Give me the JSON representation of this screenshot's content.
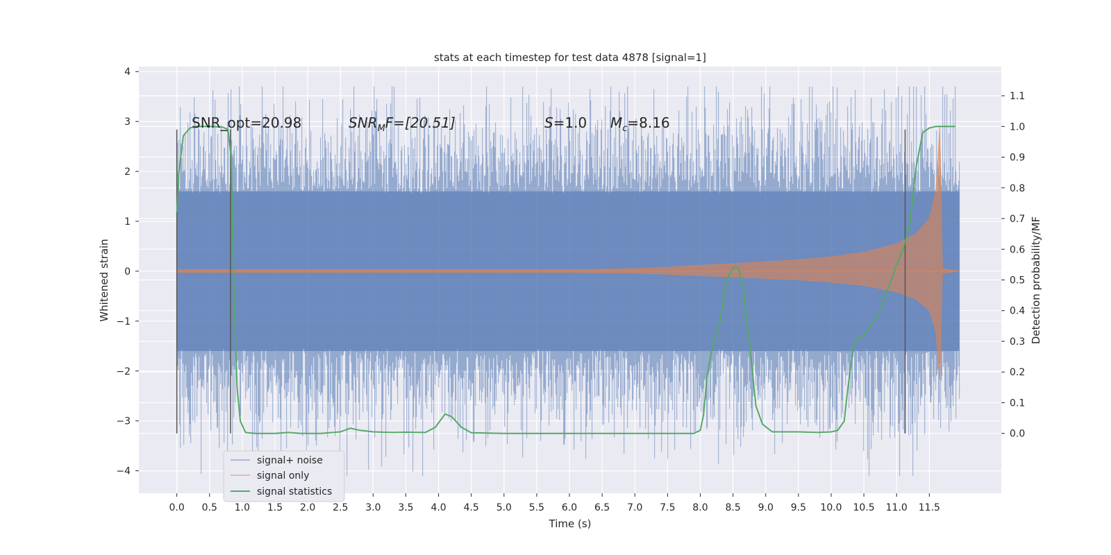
{
  "chart_data": {
    "type": "line",
    "title": "stats at each timestep for test data 4878 [signal=1]",
    "xlabel": "Time (s)",
    "ylabel": "Whitened strain",
    "y2label": "Detection probability/MF",
    "xlim": [
      -0.58,
      12.6
    ],
    "ylim": [
      -4.45,
      4.1
    ],
    "y2lim": [
      -0.195,
      1.195
    ],
    "x_ticks": [
      "0.0",
      "0.5",
      "1.0",
      "1.5",
      "2.0",
      "2.5",
      "3.0",
      "3.5",
      "4.0",
      "4.5",
      "5.0",
      "5.5",
      "6.0",
      "6.5",
      "7.0",
      "7.5",
      "8.0",
      "8.5",
      "9.0",
      "9.5",
      "10.0",
      "10.5",
      "11.0",
      "11.5"
    ],
    "y_ticks": [
      "4",
      "3",
      "2",
      "1",
      "0",
      "−1",
      "−2",
      "−3",
      "−4"
    ],
    "y2_ticks": [
      "0.0",
      "0.1",
      "0.2",
      "0.3",
      "0.4",
      "0.5",
      "0.6",
      "0.7",
      "0.8",
      "0.9",
      "1.0",
      "1.1"
    ],
    "grid": true,
    "legend_position": "lower-left",
    "annotations": {
      "snr_opt": "SNR_opt=20.98",
      "snr_mf_base": "SNR",
      "snr_mf_sub": "M",
      "snr_mf_rest": "F=[20.51]",
      "s_italic": "S",
      "s_value": "=1.0",
      "mc_base": "M",
      "mc_sub": "c",
      "mc_value": "=8.16"
    },
    "series": [
      {
        "name": "signal+ noise",
        "color": "#4c72b0",
        "x_range": [
          0.0,
          11.96
        ],
        "amplitude_typical": [
          -1.6,
          1.6
        ],
        "amplitude_extreme": [
          -4.1,
          3.7
        ]
      },
      {
        "name": "signal only",
        "color": "#dd8452",
        "x": [
          0,
          6.0,
          7.0,
          7.5,
          8.0,
          8.5,
          9.0,
          9.5,
          10.0,
          10.5,
          11.0,
          11.3,
          11.5,
          11.6,
          11.66,
          11.7,
          11.96
        ],
        "envelope": [
          0.03,
          0.03,
          0.05,
          0.08,
          0.12,
          0.15,
          0.19,
          0.23,
          0.29,
          0.38,
          0.55,
          0.75,
          1.05,
          1.6,
          2.9,
          0.05,
          0.0
        ]
      },
      {
        "name": "signal statistics",
        "color": "#55a868",
        "x": [
          0.0,
          0.03,
          0.1,
          0.2,
          0.3,
          0.5,
          0.7,
          0.78,
          0.83,
          0.87,
          0.92,
          0.97,
          1.05,
          1.2,
          1.5,
          1.7,
          1.9,
          2.2,
          2.5,
          2.65,
          2.8,
          3.0,
          3.3,
          3.5,
          3.8,
          3.95,
          4.1,
          4.2,
          4.35,
          4.5,
          5.0,
          6.0,
          7.0,
          7.9,
          8.0,
          8.05,
          8.1,
          8.2,
          8.3,
          8.4,
          8.5,
          8.58,
          8.65,
          8.75,
          8.85,
          8.95,
          9.1,
          9.5,
          9.8,
          10.0,
          10.1,
          10.2,
          10.25,
          10.35,
          10.5,
          10.7,
          10.9,
          11.0,
          11.1,
          11.2,
          11.3,
          11.4,
          11.5,
          11.6,
          11.7,
          11.9
        ],
        "y": [
          0.72,
          0.85,
          0.97,
          0.995,
          1.0,
          1.0,
          0.998,
          0.99,
          0.9,
          0.5,
          0.15,
          0.04,
          0.003,
          0.0,
          0.0,
          0.003,
          0.0,
          0.0,
          0.005,
          0.017,
          0.01,
          0.005,
          0.003,
          0.004,
          0.003,
          0.02,
          0.063,
          0.055,
          0.02,
          0.002,
          0.0,
          0.0,
          0.0,
          0.0,
          0.01,
          0.06,
          0.18,
          0.3,
          0.36,
          0.5,
          0.54,
          0.54,
          0.48,
          0.3,
          0.09,
          0.03,
          0.005,
          0.005,
          0.003,
          0.005,
          0.01,
          0.04,
          0.14,
          0.3,
          0.32,
          0.38,
          0.49,
          0.55,
          0.6,
          0.68,
          0.87,
          0.98,
          0.995,
          1.0,
          1.0,
          1.0
        ]
      }
    ],
    "vertical_markers": [
      {
        "x": 0.0,
        "y2_range": [
          0.0,
          0.99
        ]
      },
      {
        "x": 0.82,
        "y2_range": [
          0.0,
          0.99
        ]
      },
      {
        "x": 11.13,
        "y2_range": [
          0.0,
          0.99
        ]
      }
    ]
  }
}
